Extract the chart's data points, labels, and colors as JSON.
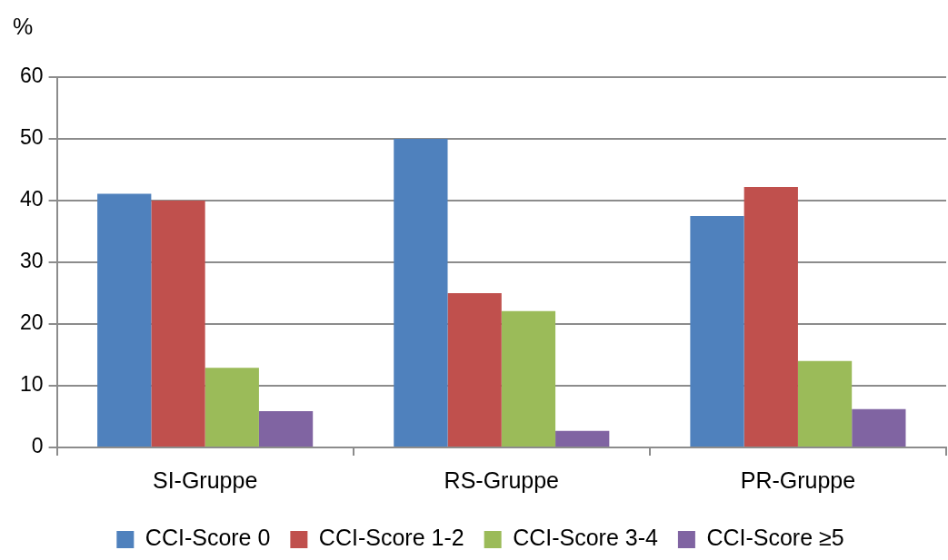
{
  "chart_data": {
    "type": "bar",
    "ylabel": "%",
    "categories": [
      "SI-Gruppe",
      "RS-Gruppe",
      "PR-Gruppe"
    ],
    "series": [
      {
        "name": "CCI-Score 0",
        "color": "#4f81bd",
        "values": [
          41.1,
          50.0,
          37.5
        ]
      },
      {
        "name": "CCI-Score 1-2",
        "color": "#c0504d",
        "values": [
          40.0,
          25.0,
          42.2
        ]
      },
      {
        "name": "CCI-Score 3-4",
        "color": "#9bbb59",
        "values": [
          12.9,
          22.1,
          14.0
        ]
      },
      {
        "name": "CCI-Score ≥5",
        "color": "#8064a2",
        "values": [
          5.9,
          2.7,
          6.2
        ]
      }
    ],
    "ylim": [
      0,
      60
    ],
    "yticks": [
      0,
      10,
      20,
      30,
      40,
      50,
      60
    ],
    "grid": "y",
    "legend": "bottom"
  }
}
